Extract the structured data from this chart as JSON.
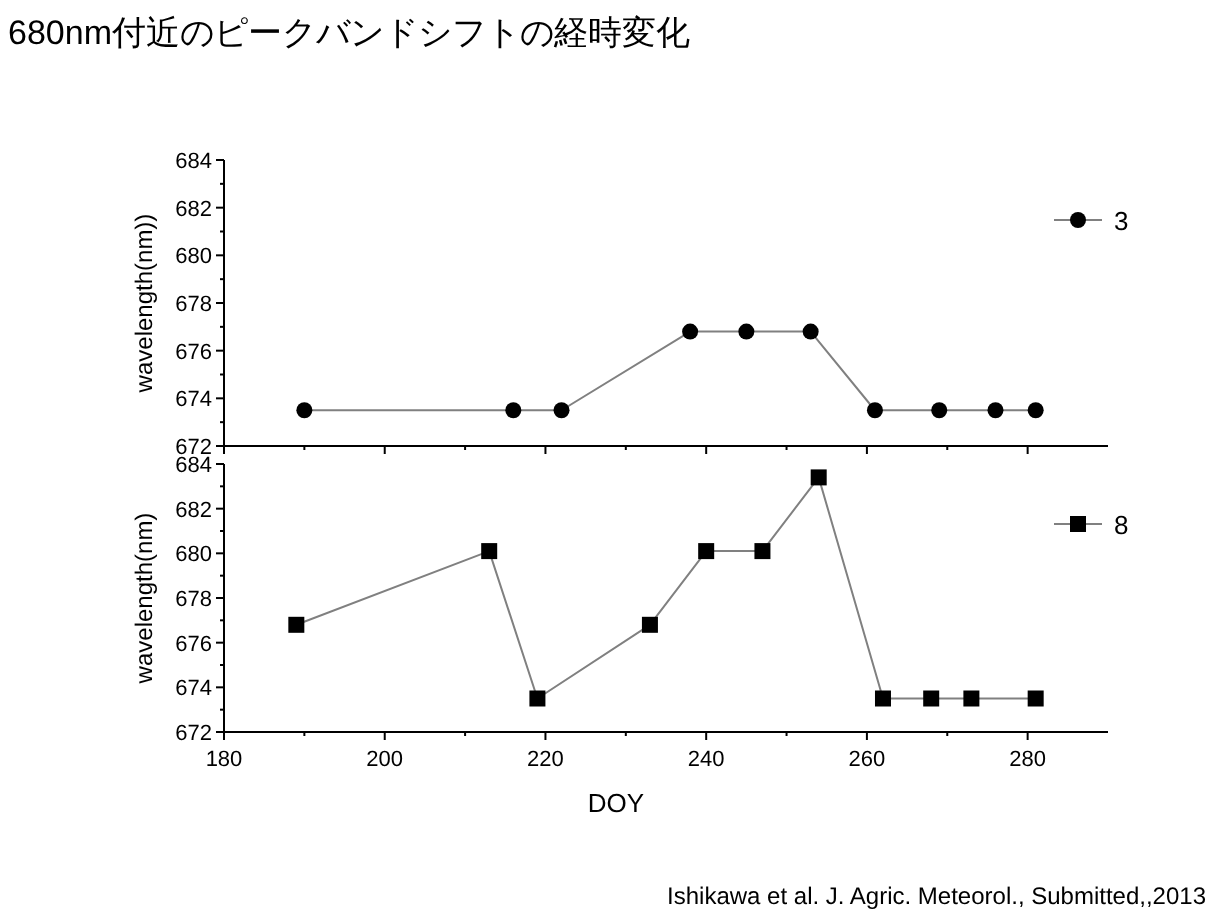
{
  "chart_data": [
    {
      "type": "line",
      "title": "680nm付近のピークバンドシフトの経時変化",
      "ylabel": "wavelength(nm))",
      "xlim": [
        180,
        290
      ],
      "xticks": [
        180,
        200,
        220,
        240,
        260,
        280
      ],
      "ylim": [
        672,
        684
      ],
      "yticks": [
        672,
        674,
        676,
        678,
        680,
        682,
        684
      ],
      "tick_labels": "y",
      "legend": "top right",
      "marker": "circle",
      "line_style": "solid",
      "grid": false,
      "series": [
        {
          "name": "3",
          "color": "#000000",
          "x": [
            190,
            216,
            222,
            238,
            245,
            253,
            261,
            269,
            276,
            281
          ],
          "values": [
            673.5,
            673.5,
            673.5,
            676.8,
            676.8,
            676.8,
            673.5,
            673.5,
            673.5,
            673.5
          ]
        }
      ]
    },
    {
      "type": "line",
      "xlabel": "DOY",
      "ylabel": "wavelength(nm)",
      "xlim": [
        180,
        290
      ],
      "xticks": [
        180,
        200,
        220,
        240,
        260,
        280
      ],
      "ylim": [
        672,
        684
      ],
      "yticks": [
        672,
        674,
        676,
        678,
        680,
        682,
        684
      ],
      "legend": "top right",
      "marker": "square",
      "line_style": "solid",
      "grid": false,
      "annotations": [
        "Ishikawa et al. J. Agric. Meteorol., Submitted,,2013"
      ],
      "series": [
        {
          "name": "8",
          "color": "#000000",
          "x": [
            189,
            213,
            219,
            233,
            240,
            247,
            254,
            262,
            268,
            273,
            281
          ],
          "values": [
            676.8,
            680.1,
            673.5,
            676.8,
            680.1,
            680.1,
            683.4,
            673.5,
            673.5,
            673.5,
            673.5
          ]
        }
      ]
    }
  ]
}
